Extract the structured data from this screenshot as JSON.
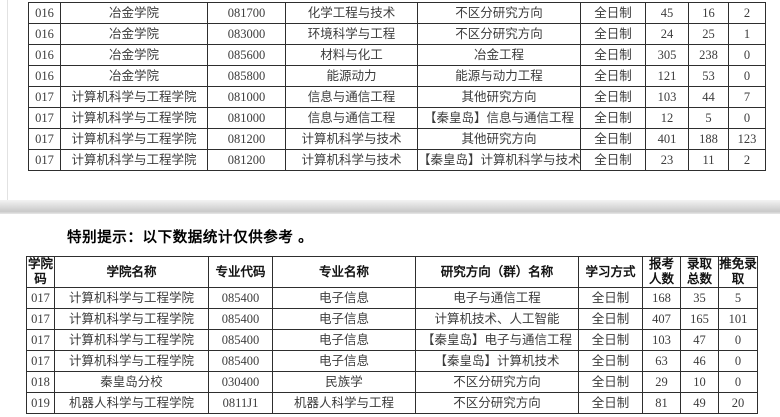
{
  "notice": "特别提示：以下数据统计仅供参考 。",
  "table_top": {
    "rows": [
      [
        "016",
        "冶金学院",
        "081700",
        "化学工程与技术",
        "不区分研究方向",
        "全日制",
        "45",
        "16",
        "2"
      ],
      [
        "016",
        "冶金学院",
        "083000",
        "环境科学与工程",
        "不区分研究方向",
        "全日制",
        "24",
        "25",
        "1"
      ],
      [
        "016",
        "冶金学院",
        "085600",
        "材料与化工",
        "冶金工程",
        "全日制",
        "305",
        "238",
        "0"
      ],
      [
        "016",
        "冶金学院",
        "085800",
        "能源动力",
        "能源与动力工程",
        "全日制",
        "121",
        "53",
        "0"
      ],
      [
        "017",
        "计算机科学与工程学院",
        "081000",
        "信息与通信工程",
        "其他研究方向",
        "全日制",
        "103",
        "44",
        "7"
      ],
      [
        "017",
        "计算机科学与工程学院",
        "081000",
        "信息与通信工程",
        "【秦皇岛】信息与通信工程",
        "全日制",
        "12",
        "5",
        "0"
      ],
      [
        "017",
        "计算机科学与工程学院",
        "081200",
        "计算机科学与技术",
        "其他研究方向",
        "全日制",
        "401",
        "188",
        "123"
      ],
      [
        "017",
        "计算机科学与工程学院",
        "081200",
        "计算机科学与技术",
        "【秦皇岛】计算机科学与技术",
        "全日制",
        "23",
        "11",
        "2"
      ]
    ]
  },
  "table_bottom": {
    "headers": [
      "学院码",
      "学院名称",
      "专业代码",
      "专业名称",
      "研究方向（群）名称",
      "学习方式",
      "报考人数",
      "录取总数",
      "推免录取"
    ],
    "rows": [
      [
        "017",
        "计算机科学与工程学院",
        "085400",
        "电子信息",
        "电子与通信工程",
        "全日制",
        "168",
        "35",
        "5"
      ],
      [
        "017",
        "计算机科学与工程学院",
        "085400",
        "电子信息",
        "计算机技术、人工智能",
        "全日制",
        "407",
        "165",
        "101"
      ],
      [
        "017",
        "计算机科学与工程学院",
        "085400",
        "电子信息",
        "【秦皇岛】电子与通信工程",
        "全日制",
        "103",
        "47",
        "0"
      ],
      [
        "017",
        "计算机科学与工程学院",
        "085400",
        "电子信息",
        "【秦皇岛】计算机技术",
        "全日制",
        "63",
        "46",
        "0"
      ],
      [
        "018",
        "秦皇岛分校",
        "030400",
        "民族学",
        "不区分研究方向",
        "全日制",
        "29",
        "10",
        "0"
      ],
      [
        "019",
        "机器人科学与工程学院",
        "0811J1",
        "机器人科学与工程",
        "不区分研究方向",
        "全日制",
        "81",
        "49",
        "20"
      ]
    ]
  }
}
